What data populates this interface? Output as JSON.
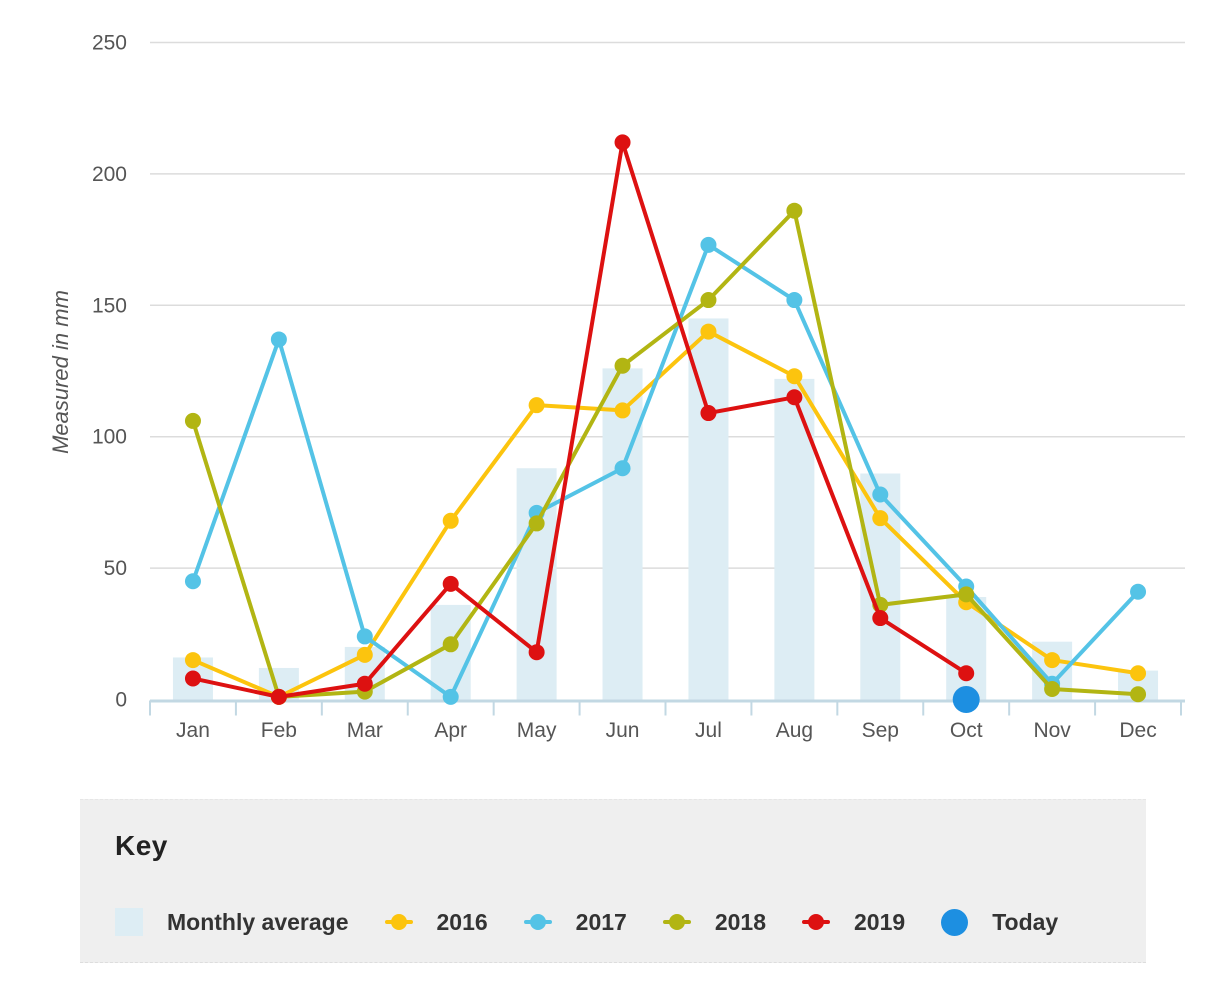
{
  "chart_data": {
    "type": "line",
    "ylabel": "Measured in mm",
    "categories": [
      "Jan",
      "Feb",
      "Mar",
      "Apr",
      "May",
      "Jun",
      "Jul",
      "Aug",
      "Sep",
      "Oct",
      "Nov",
      "Dec"
    ],
    "y_ticks": [
      0,
      50,
      100,
      150,
      200,
      250
    ],
    "ylim": [
      0,
      250
    ],
    "grid": true,
    "legend_position": "bottom-panel",
    "bar_series": {
      "name": "Monthly average",
      "color": "#ddedf4",
      "values": [
        16,
        12,
        20,
        36,
        88,
        126,
        145,
        122,
        86,
        39,
        22,
        11
      ]
    },
    "series": [
      {
        "name": "2016",
        "color": "#fcc40e",
        "values": [
          15,
          1,
          17,
          68,
          112,
          110,
          140,
          123,
          69,
          37,
          15,
          10
        ]
      },
      {
        "name": "2017",
        "color": "#54c3e6",
        "values": [
          45,
          137,
          24,
          1,
          71,
          88,
          173,
          152,
          78,
          43,
          6,
          41
        ]
      },
      {
        "name": "2018",
        "color": "#b2b513",
        "values": [
          106,
          1,
          3,
          21,
          67,
          127,
          152,
          186,
          36,
          40,
          4,
          2
        ]
      },
      {
        "name": "2019",
        "color": "#dd1111",
        "values": [
          8,
          1,
          6,
          44,
          18,
          212,
          109,
          115,
          31,
          10,
          null,
          null
        ]
      }
    ],
    "today": {
      "name": "Today",
      "color": "#1d8fe1",
      "month": "Oct",
      "month_index": 9,
      "value": 0
    },
    "colors": {
      "grid": "#dcdcdc",
      "axis_line": "#c2d8e3",
      "axis_text": "#555555"
    }
  },
  "key": {
    "title": "Key",
    "items": [
      {
        "label": "Monthly average"
      },
      {
        "label": "2016"
      },
      {
        "label": "2017"
      },
      {
        "label": "2018"
      },
      {
        "label": "2019"
      },
      {
        "label": "Today"
      }
    ]
  }
}
